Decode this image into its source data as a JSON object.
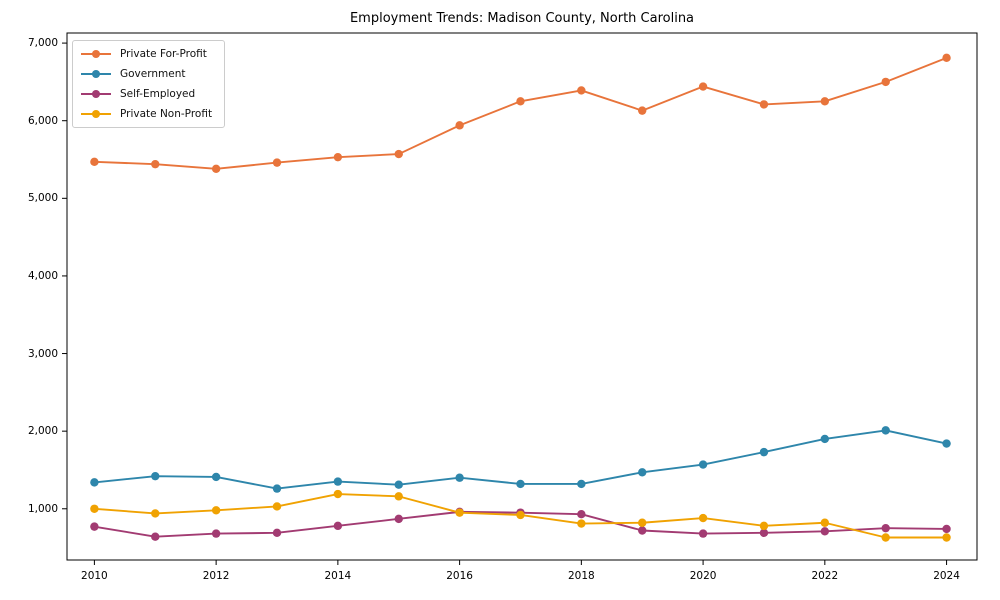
{
  "chart_data": {
    "type": "line",
    "title": "Employment Trends: Madison County, North Carolina",
    "x": [
      2010,
      2011,
      2012,
      2013,
      2014,
      2015,
      2016,
      2017,
      2018,
      2019,
      2020,
      2021,
      2022,
      2023,
      2024
    ],
    "series": [
      {
        "name": "Private For-Profit",
        "color": "#e8743b",
        "values": [
          5470,
          5440,
          5380,
          5460,
          5530,
          5570,
          5940,
          6250,
          6390,
          6130,
          6440,
          6210,
          6250,
          6500,
          6810
        ]
      },
      {
        "name": "Government",
        "color": "#2e86ab",
        "values": [
          1340,
          1420,
          1410,
          1260,
          1350,
          1310,
          1400,
          1320,
          1320,
          1470,
          1570,
          1730,
          1900,
          2010,
          1840
        ]
      },
      {
        "name": "Self-Employed",
        "color": "#a23b72",
        "values": [
          770,
          640,
          680,
          690,
          780,
          870,
          960,
          950,
          930,
          720,
          680,
          690,
          710,
          750,
          740
        ]
      },
      {
        "name": "Private Non-Profit",
        "color": "#f0a202",
        "values": [
          1000,
          940,
          980,
          1030,
          1190,
          1160,
          950,
          920,
          810,
          820,
          880,
          780,
          820,
          630,
          630
        ]
      }
    ],
    "xticks": [
      2010,
      2012,
      2014,
      2016,
      2018,
      2020,
      2022,
      2024
    ],
    "xtick_labels": [
      "2010",
      "2012",
      "2014",
      "2016",
      "2018",
      "2020",
      "2022",
      "2024"
    ],
    "yticks": [
      1000,
      2000,
      3000,
      4000,
      5000,
      6000,
      7000
    ],
    "ytick_labels": [
      "1,000",
      "2,000",
      "3,000",
      "4,000",
      "5,000",
      "6,000",
      "7,000"
    ],
    "xlim": [
      2009.55,
      2024.5
    ],
    "ylim": [
      340,
      7130
    ],
    "grid": false,
    "legend_position": "upper-left",
    "axis_color": "#000000"
  }
}
